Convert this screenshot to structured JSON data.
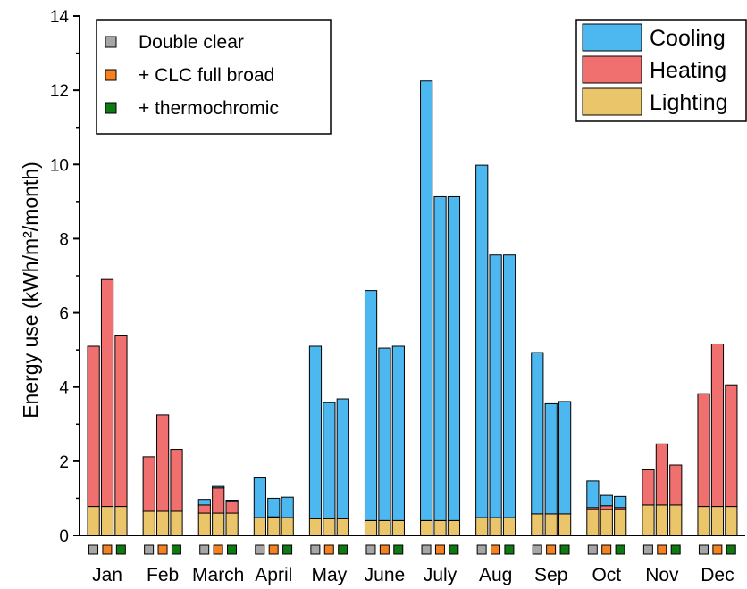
{
  "chart_data": {
    "type": "bar",
    "stacked": true,
    "ylabel": "Energy use (kWh/m²/month)",
    "ylim": [
      0,
      14
    ],
    "yticks": [
      0,
      2,
      4,
      6,
      8,
      10,
      12,
      14
    ],
    "grid": false,
    "categories": [
      "Jan",
      "Feb",
      "March",
      "April",
      "May",
      "June",
      "July",
      "Aug",
      "Sep",
      "Oct",
      "Nov",
      "Dec"
    ],
    "variants": [
      {
        "name": "Double clear",
        "color": "#a6a6a6"
      },
      {
        "name": "+ CLC full broad",
        "color": "#f58220"
      },
      {
        "name": "+ thermochromic",
        "color": "#0f7a12"
      }
    ],
    "components": [
      {
        "name": "Cooling",
        "color": "#4db8f0"
      },
      {
        "name": "Heating",
        "color": "#f07070"
      },
      {
        "name": "Lighting",
        "color": "#ebc56a"
      }
    ],
    "series": [
      {
        "name": "Lighting",
        "values": [
          [
            0.78,
            0.78,
            0.78
          ],
          [
            0.65,
            0.65,
            0.65
          ],
          [
            0.6,
            0.6,
            0.6
          ],
          [
            0.48,
            0.48,
            0.48
          ],
          [
            0.45,
            0.45,
            0.45
          ],
          [
            0.4,
            0.4,
            0.4
          ],
          [
            0.4,
            0.4,
            0.4
          ],
          [
            0.48,
            0.48,
            0.48
          ],
          [
            0.58,
            0.58,
            0.58
          ],
          [
            0.7,
            0.7,
            0.7
          ],
          [
            0.82,
            0.82,
            0.82
          ],
          [
            0.78,
            0.78,
            0.78
          ]
        ]
      },
      {
        "name": "Heating",
        "values": [
          [
            4.32,
            6.12,
            4.62
          ],
          [
            1.47,
            2.6,
            1.67
          ],
          [
            0.22,
            0.68,
            0.32
          ],
          [
            0.0,
            0.02,
            0.0
          ],
          [
            0.0,
            0.0,
            0.0
          ],
          [
            0.0,
            0.0,
            0.0
          ],
          [
            0.0,
            0.0,
            0.0
          ],
          [
            0.0,
            0.0,
            0.0
          ],
          [
            0.0,
            0.0,
            0.0
          ],
          [
            0.05,
            0.1,
            0.05
          ],
          [
            0.95,
            1.65,
            1.08
          ],
          [
            3.04,
            4.38,
            3.28
          ]
        ]
      },
      {
        "name": "Cooling",
        "values": [
          [
            0.0,
            0.0,
            0.0
          ],
          [
            0.0,
            0.0,
            0.0
          ],
          [
            0.15,
            0.04,
            0.03
          ],
          [
            1.07,
            0.5,
            0.55
          ],
          [
            4.65,
            3.13,
            3.23
          ],
          [
            6.2,
            4.65,
            4.7
          ],
          [
            11.85,
            8.73,
            8.73
          ],
          [
            9.5,
            7.08,
            7.08
          ],
          [
            4.35,
            2.97,
            3.03
          ],
          [
            0.72,
            0.28,
            0.3
          ],
          [
            0.0,
            0.0,
            0.0
          ],
          [
            0.0,
            0.0,
            0.0
          ]
        ]
      }
    ]
  }
}
